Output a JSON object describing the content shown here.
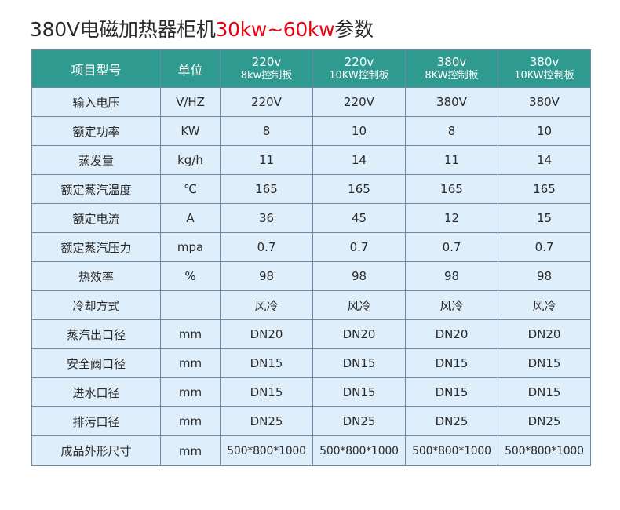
{
  "title": {
    "prefix": "380V电磁加热器柜机",
    "highlight": "30kw~60kw",
    "suffix": "参数"
  },
  "colors": {
    "header_bg": "#2f9a8f",
    "cell_bg": "#dfeefb",
    "border": "#6f88a3",
    "title_highlight": "#e60012"
  },
  "table": {
    "headers": [
      {
        "line1": "项目型号",
        "line2": ""
      },
      {
        "line1": "单位",
        "line2": ""
      },
      {
        "line1": "220v",
        "line2": "8kw控制板"
      },
      {
        "line1": "220v",
        "line2": "10KW控制板"
      },
      {
        "line1": "380v",
        "line2": "8KW控制板"
      },
      {
        "line1": "380v",
        "line2": "10KW控制板"
      }
    ],
    "rows": [
      [
        "输入电压",
        "V/HZ",
        "220V",
        "220V",
        "380V",
        "380V"
      ],
      [
        "额定功率",
        "KW",
        "8",
        "10",
        "8",
        "10"
      ],
      [
        "蒸发量",
        "kg/h",
        "11",
        "14",
        "11",
        "14"
      ],
      [
        "额定蒸汽温度",
        "℃",
        "165",
        "165",
        "165",
        "165"
      ],
      [
        "额定电流",
        "A",
        "36",
        "45",
        "12",
        "15"
      ],
      [
        "额定蒸汽压力",
        "mpa",
        "0.7",
        "0.7",
        "0.7",
        "0.7"
      ],
      [
        "热效率",
        "%",
        "98",
        "98",
        "98",
        "98"
      ],
      [
        "冷却方式",
        "",
        "风冷",
        "风冷",
        "风冷",
        "风冷"
      ],
      [
        "蒸汽出口径",
        "mm",
        "DN20",
        "DN20",
        "DN20",
        "DN20"
      ],
      [
        "安全阀口径",
        "mm",
        "DN15",
        "DN15",
        "DN15",
        "DN15"
      ],
      [
        "进水口径",
        "mm",
        "DN15",
        "DN15",
        "DN15",
        "DN15"
      ],
      [
        "排污口径",
        "mm",
        "DN25",
        "DN25",
        "DN25",
        "DN25"
      ],
      [
        "成品外形尺寸",
        "mm",
        "500*800*1000",
        "500*800*1000",
        "500*800*1000",
        "500*800*1000"
      ]
    ]
  }
}
